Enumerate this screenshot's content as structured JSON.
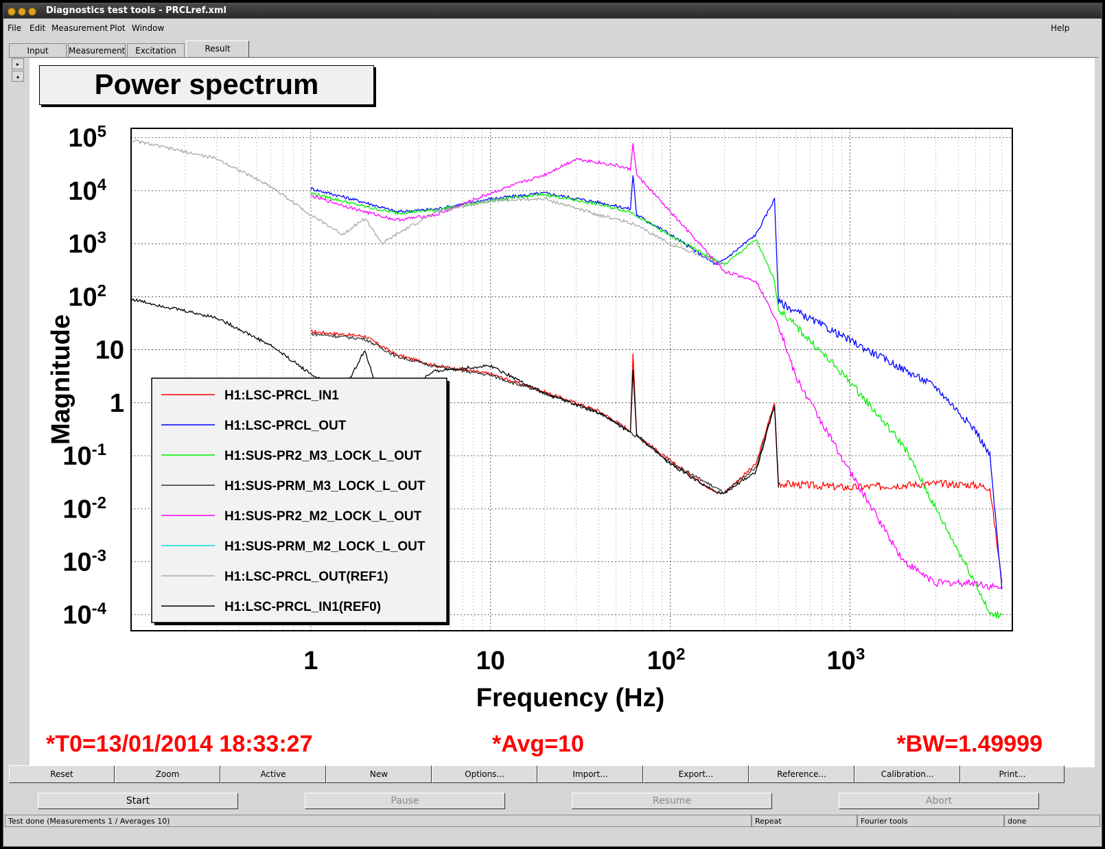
{
  "window": {
    "title": "Diagnostics test tools - PRCLref.xml"
  },
  "menu": {
    "file": "File",
    "edit": "Edit",
    "measurement": "Measurement",
    "plot": "Plot",
    "window": "Window",
    "help": "Help"
  },
  "tabs": {
    "input": "Input",
    "measurement": "Measurement",
    "excitation": "Excitation",
    "result": "Result",
    "active": "Result"
  },
  "plot": {
    "title": "Power spectrum",
    "info_t0": "*T0=13/01/2014 18:33:27",
    "info_avg": "*Avg=10",
    "info_bw": "*BW=1.49999",
    "info_color": "#ff0000"
  },
  "chart_data": {
    "type": "line",
    "title": "Power spectrum",
    "xlabel": "Frequency (Hz)",
    "ylabel": "Magnitude",
    "xscale": "log",
    "yscale": "log",
    "xlim": [
      0.1,
      8000
    ],
    "ylim": [
      5e-05,
      150000
    ],
    "grid": true,
    "legend_position": "lower-left",
    "x_ticks": [
      {
        "value": 1,
        "base": "1",
        "exp": ""
      },
      {
        "value": 10,
        "base": "10",
        "exp": ""
      },
      {
        "value": 100,
        "base": "10",
        "exp": "2"
      },
      {
        "value": 1000,
        "base": "10",
        "exp": "3"
      }
    ],
    "y_ticks": [
      {
        "value": 100000,
        "base": "10",
        "exp": "5"
      },
      {
        "value": 10000,
        "base": "10",
        "exp": "4"
      },
      {
        "value": 1000,
        "base": "10",
        "exp": "3"
      },
      {
        "value": 100,
        "base": "10",
        "exp": "2"
      },
      {
        "value": 10,
        "base": "10",
        "exp": ""
      },
      {
        "value": 1,
        "base": "1",
        "exp": ""
      },
      {
        "value": 0.1,
        "base": "10",
        "exp": "-1"
      },
      {
        "value": 0.01,
        "base": "10",
        "exp": "-2"
      },
      {
        "value": 0.001,
        "base": "10",
        "exp": "-3"
      },
      {
        "value": 0.0001,
        "base": "10",
        "exp": "-4"
      }
    ],
    "series": [
      {
        "name": "H1:LSC-PRCL_IN1",
        "color": "#ff0000",
        "x": [
          1,
          2,
          3,
          5,
          10,
          20,
          40,
          60,
          62,
          65,
          100,
          180,
          200,
          300,
          380,
          400,
          1000,
          3000,
          5000,
          6000,
          7000
        ],
        "y": [
          22,
          18,
          8,
          5,
          3.5,
          1.6,
          0.7,
          0.3,
          8,
          0.25,
          0.08,
          0.02,
          0.02,
          0.07,
          1,
          0.03,
          0.025,
          0.03,
          0.028,
          0.025,
          0.0004
        ]
      },
      {
        "name": "H1:LSC-PRCL_OUT",
        "color": "#0000ff",
        "x": [
          1,
          2,
          3,
          5,
          10,
          20,
          40,
          60,
          62,
          65,
          100,
          180,
          200,
          300,
          380,
          400,
          1000,
          3000,
          5000,
          6000,
          7000
        ],
        "y": [
          11000,
          6000,
          4000,
          4500,
          7000,
          9000,
          6000,
          4500,
          20000,
          3500,
          1500,
          400,
          500,
          1500,
          7000,
          80,
          15,
          2,
          0.3,
          0.1,
          0.0003
        ]
      },
      {
        "name": "H1:SUS-PR2_M3_LOCK_L_OUT",
        "color": "#00ee00",
        "x": [
          1,
          2,
          3,
          5,
          10,
          20,
          40,
          60,
          100,
          200,
          300,
          380,
          400,
          1000,
          2000,
          3000,
          5000,
          6000,
          7000
        ],
        "y": [
          9000,
          5000,
          3800,
          4300,
          6500,
          8500,
          5500,
          4000,
          1400,
          400,
          1200,
          200,
          60,
          2.5,
          0.15,
          0.01,
          0.0004,
          0.0001,
          0.0001
        ]
      },
      {
        "name": "H1:SUS-PRM_M3_LOCK_L_OUT",
        "color": "#333333",
        "x": [
          1,
          2,
          3,
          5,
          10,
          20,
          40,
          60,
          100,
          200,
          300,
          380
        ],
        "y": [
          20,
          16,
          7.5,
          4.8,
          3.3,
          1.5,
          0.65,
          0.28,
          0.075,
          0.02,
          0.06,
          0.9
        ]
      },
      {
        "name": "H1:SUS-PR2_M2_LOCK_L_OUT",
        "color": "#ff00ff",
        "x": [
          1,
          2,
          3,
          5,
          10,
          20,
          30,
          50,
          60,
          62,
          65,
          100,
          200,
          300,
          400,
          500,
          1000,
          2000,
          3000,
          5000,
          7000
        ],
        "y": [
          8000,
          4000,
          2800,
          3500,
          9000,
          20000,
          40000,
          30000,
          25000,
          80000,
          20000,
          4000,
          300,
          200,
          30,
          3,
          0.05,
          0.001,
          0.0004,
          0.0004,
          0.0003
        ]
      },
      {
        "name": "H1:SUS-PRM_M2_LOCK_L_OUT",
        "color": "#00e0e0",
        "x": [],
        "y": []
      },
      {
        "name": "H1:LSC-PRCL_OUT(REF1)",
        "color": "#a8a8a8",
        "x": [
          0.1,
          0.3,
          0.6,
          1,
          1.5,
          2,
          2.5,
          3,
          5,
          10,
          20,
          40,
          60,
          100,
          200
        ],
        "y": [
          90000,
          40000,
          12000,
          3500,
          1500,
          3000,
          1000,
          1500,
          4000,
          6500,
          7000,
          3500,
          2500,
          1000,
          400
        ]
      },
      {
        "name": "H1:LSC-PRCL_IN1(REF0)",
        "color": "#000000",
        "x": [
          0.1,
          0.3,
          0.6,
          1,
          1.5,
          2,
          2.5,
          3,
          5,
          10,
          20,
          40,
          60,
          62,
          65,
          100,
          180,
          200,
          300,
          380,
          400
        ],
        "y": [
          90,
          40,
          12,
          3.5,
          1.5,
          10,
          0.8,
          1.5,
          4,
          5,
          1.5,
          0.65,
          0.27,
          4,
          0.25,
          0.07,
          0.02,
          0.02,
          0.05,
          0.9,
          0.025
        ]
      }
    ]
  },
  "toolbar": {
    "reset": "Reset",
    "zoom": "Zoom",
    "active": "Active",
    "new": "New",
    "options": "Options...",
    "import": "Import...",
    "export": "Export...",
    "reference": "Reference...",
    "calibration": "Calibration...",
    "print": "Print..."
  },
  "run": {
    "start": "Start",
    "pause": "Pause",
    "resume": "Resume",
    "abort": "Abort"
  },
  "status": {
    "message": "Test done (Measurements 1 / Averages 10)",
    "mode": "Repeat",
    "tools": "Fourier tools",
    "state": "done"
  }
}
